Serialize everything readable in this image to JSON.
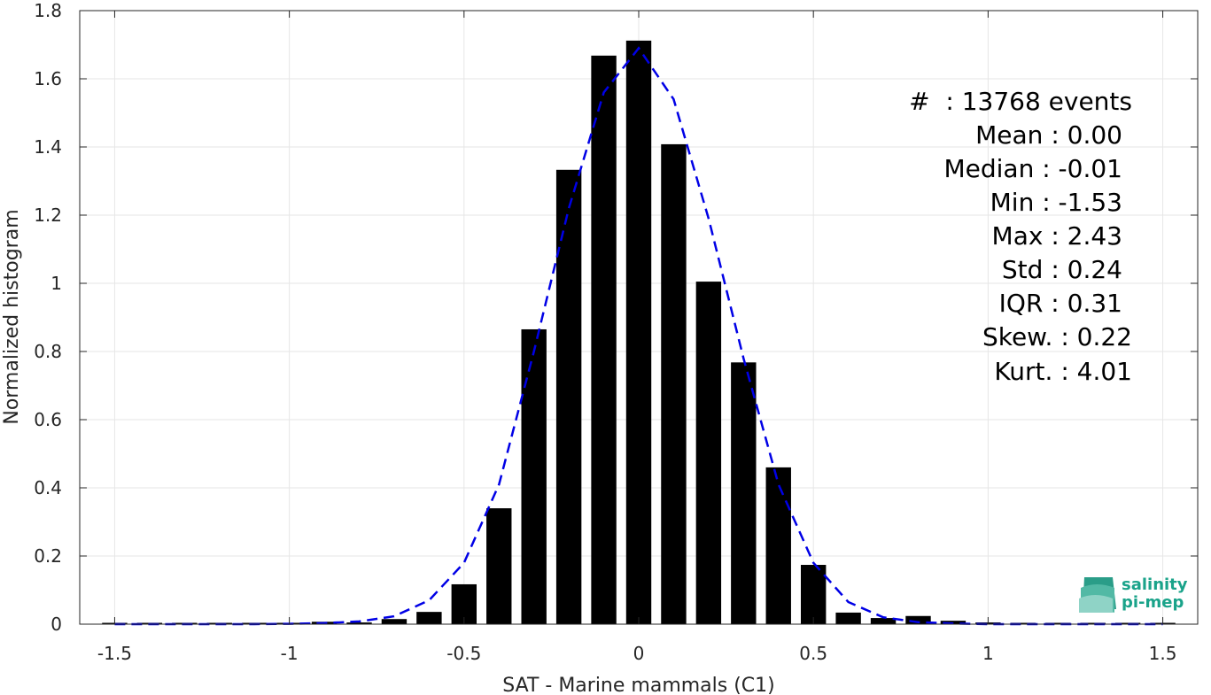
{
  "chart_data": {
    "type": "bar",
    "xlabel": "SAT - Marine mammals (C1)",
    "ylabel": "Normalized histogram",
    "xlim": [
      -1.6,
      1.6
    ],
    "ylim": [
      0,
      1.8
    ],
    "xticks": [
      -1.5,
      -1,
      -0.5,
      0,
      0.5,
      1,
      1.5
    ],
    "xtick_labels": [
      "-1.5",
      "-1",
      "-0.5",
      "0",
      "0.5",
      "1",
      "1.5"
    ],
    "yticks": [
      0,
      0.2,
      0.4,
      0.6,
      0.8,
      1,
      1.2,
      1.4,
      1.6,
      1.8
    ],
    "ytick_labels": [
      "0",
      "0.2",
      "0.4",
      "0.6",
      "0.8",
      "1",
      "1.2",
      "1.4",
      "1.6",
      "1.8"
    ],
    "grid": true,
    "bar_color": "#000000",
    "bar_centers": [
      -1.5,
      -1.4,
      -1.3,
      -1.2,
      -1.1,
      -1.0,
      -0.9,
      -0.8,
      -0.7,
      -0.6,
      -0.5,
      -0.4,
      -0.3,
      -0.2,
      -0.1,
      0.0,
      0.1,
      0.2,
      0.3,
      0.4,
      0.5,
      0.6,
      0.7,
      0.8,
      0.9,
      1.0,
      1.1,
      1.2,
      1.3,
      1.4,
      1.5
    ],
    "bar_values": [
      0.002,
      0.0,
      0.0,
      0.0,
      0.0,
      0.002,
      0.007,
      0.005,
      0.015,
      0.036,
      0.117,
      0.34,
      0.865,
      1.333,
      1.668,
      1.712,
      1.408,
      1.005,
      0.768,
      0.46,
      0.174,
      0.034,
      0.018,
      0.024,
      0.01,
      0.005,
      0.002,
      0.0,
      0.0,
      0.002,
      0.002
    ],
    "fit": {
      "style": "dashed",
      "color": "#0000e6",
      "x": [
        -1.5,
        -1.4,
        -1.3,
        -1.2,
        -1.1,
        -1.0,
        -0.9,
        -0.8,
        -0.7,
        -0.6,
        -0.5,
        -0.4,
        -0.3,
        -0.2,
        -0.1,
        0.0,
        0.1,
        0.2,
        0.3,
        0.4,
        0.5,
        0.6,
        0.7,
        0.8,
        0.9,
        1.0,
        1.1,
        1.2,
        1.3,
        1.4,
        1.5
      ],
      "y": [
        0.0,
        0.0,
        0.0,
        0.0,
        0.0,
        0.001,
        0.003,
        0.008,
        0.023,
        0.07,
        0.18,
        0.41,
        0.8,
        1.22,
        1.56,
        1.69,
        1.54,
        1.19,
        0.78,
        0.41,
        0.18,
        0.065,
        0.02,
        0.006,
        0.002,
        0.0,
        0.0,
        0.0,
        0.0,
        0.0,
        0.0
      ]
    },
    "annotations": [
      "#  : 13768 events",
      "Mean : 0.00",
      "Median : -0.01",
      "Min : -1.53",
      "Max : 2.43",
      "Std : 0.24",
      "IQR : 0.31",
      "Skew. : 0.22",
      "Kurt. : 4.01"
    ]
  },
  "logo": {
    "line1": "salinity",
    "line2": "pi-mep",
    "color": "#1aa38a"
  }
}
